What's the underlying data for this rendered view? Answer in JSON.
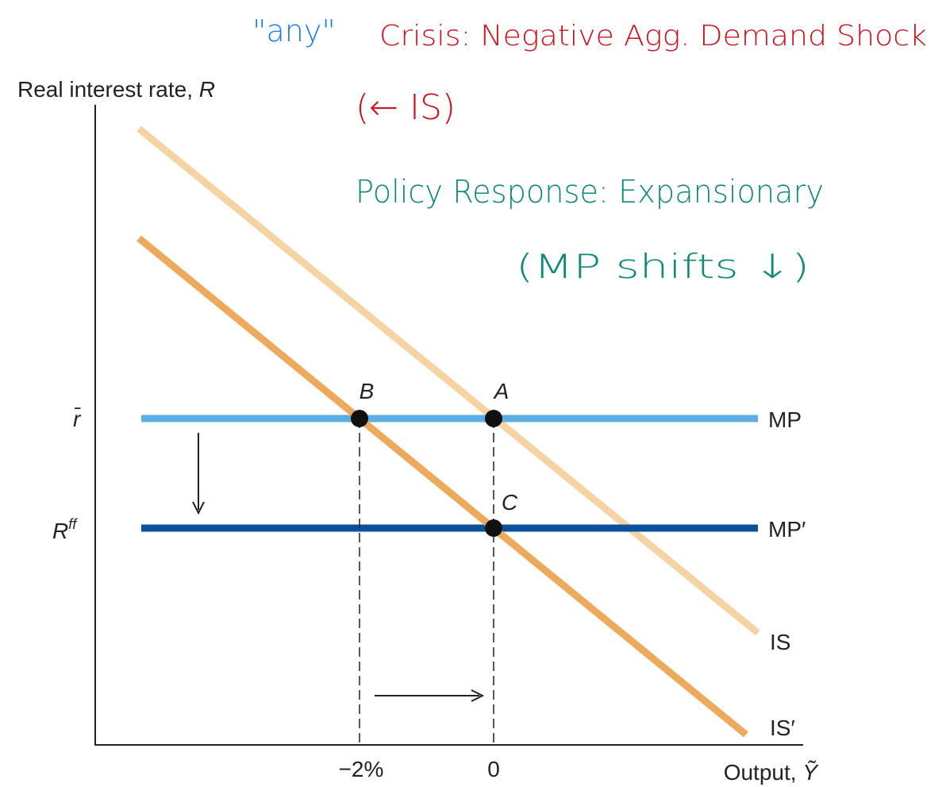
{
  "annotations": {
    "any": "\"any\"",
    "crisis": "Crisis: Negative Agg. Demand Shock",
    "shift_is": "(← IS)",
    "policy": "Policy Response: Expansionary",
    "shift_mp": "(MP shifts ↓)"
  },
  "axes": {
    "y_label": {
      "text": "Real interest rate, ",
      "var": "R"
    },
    "x_label": {
      "text": "Output, ",
      "var": "Ỹ"
    },
    "y_ticks": {
      "rbar": "r̄",
      "rff": {
        "base": "R",
        "sup": "ff"
      }
    },
    "x_ticks": {
      "minus2": "−2%",
      "zero": "0"
    }
  },
  "points": {
    "B": "B",
    "A": "A",
    "C": "C"
  },
  "curves": {
    "MP": "MP",
    "MP2": "MP′",
    "IS": "IS",
    "IS2": "IS′"
  }
}
